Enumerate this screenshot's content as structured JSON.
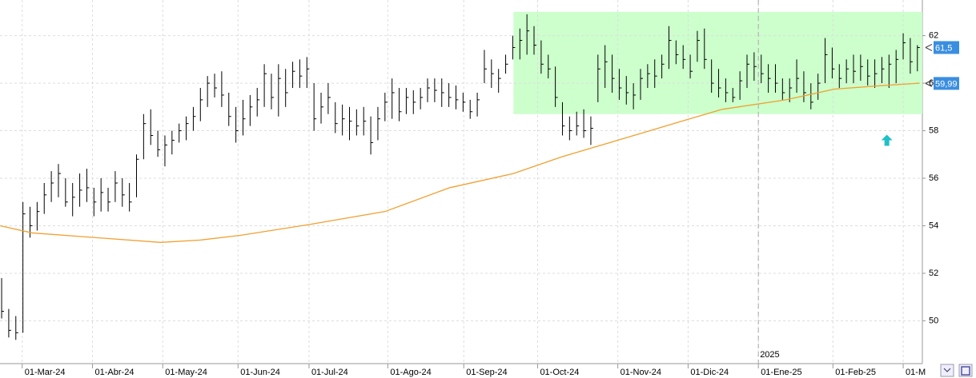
{
  "chart_data": {
    "type": "ohlc",
    "xlim": [
      -0.23,
      129.7
    ],
    "ylim": [
      48.2,
      63.5
    ],
    "yticks": [
      50,
      52,
      54,
      56,
      58,
      60,
      62
    ],
    "xticks": [
      {
        "value": 2.9,
        "label": "01-Mar-24"
      },
      {
        "value": 12.8,
        "label": "01-Abr-24"
      },
      {
        "value": 22.7,
        "label": "01-May-24"
      },
      {
        "value": 33.3,
        "label": "01-Jun-24"
      },
      {
        "value": 43.3,
        "label": "01-Jul-24"
      },
      {
        "value": 54.4,
        "label": "01-Ago-24"
      },
      {
        "value": 65.1,
        "label": "01-Sep-24"
      },
      {
        "value": 75.5,
        "label": "01-Oct-24"
      },
      {
        "value": 86.8,
        "label": "01-Nov-24"
      },
      {
        "value": 96.7,
        "label": "01-Dic-24"
      },
      {
        "value": 106.6,
        "label": "01-Ene-25"
      },
      {
        "value": 117.1,
        "label": "01-Feb-25"
      },
      {
        "value": 127.0,
        "label": "01-M"
      }
    ],
    "grid": true,
    "bar_color": "#000000",
    "high": [
      51.8,
      50.5,
      50.2,
      55.0,
      54.8,
      55.0,
      55.8,
      56.3,
      56.6,
      56.0,
      55.8,
      56.2,
      56.4,
      55.6,
      56.0,
      55.6,
      56.3,
      56.0,
      55.8,
      57.0,
      58.7,
      58.9,
      58.0,
      57.8,
      58.0,
      58.3,
      58.6,
      59.0,
      59.8,
      60.3,
      60.4,
      60.5,
      59.6,
      59.0,
      59.3,
      59.5,
      59.8,
      60.8,
      60.4,
      60.8,
      60.6,
      60.9,
      61.0,
      61.1,
      60.0,
      59.6,
      60.0,
      59.2,
      59.1,
      59.0,
      58.9,
      59.0,
      58.6,
      59.0,
      59.6,
      60.2,
      59.8,
      59.8,
      59.7,
      59.8,
      60.2,
      60.2,
      60.2,
      60.0,
      59.9,
      59.6,
      59.3,
      59.6,
      61.4,
      61.0,
      60.6,
      61.2,
      62.0,
      62.3,
      62.9,
      62.4,
      61.8,
      61.2,
      60.7,
      59.2,
      58.6,
      58.8,
      58.9,
      58.6,
      61.2,
      61.6,
      61.2,
      60.6,
      60.3,
      60.0,
      60.6,
      60.8,
      61.0,
      61.2,
      62.4,
      61.8,
      61.6,
      61.2,
      62.2,
      62.3,
      61.0,
      60.6,
      60.2,
      59.8,
      60.5,
      61.2,
      61.3,
      61.2,
      60.8,
      60.8,
      60.2,
      60.2,
      61.0,
      60.5,
      60.0,
      60.4,
      61.9,
      61.5,
      60.8,
      61.0,
      61.2,
      61.2,
      61.0,
      61.0,
      61.1,
      61.2,
      61.4,
      62.1,
      61.9,
      61.6
    ],
    "low": [
      50.1,
      49.3,
      49.2,
      49.5,
      53.5,
      53.8,
      54.5,
      55.0,
      55.2,
      54.8,
      54.4,
      54.8,
      55.0,
      54.4,
      54.6,
      54.6,
      55.0,
      54.8,
      54.6,
      55.2,
      56.8,
      57.4,
      56.9,
      56.5,
      57.0,
      57.5,
      57.6,
      58.0,
      58.4,
      59.0,
      59.4,
      59.0,
      58.2,
      57.5,
      57.8,
      58.2,
      58.6,
      59.0,
      58.9,
      58.6,
      59.0,
      59.8,
      59.8,
      59.8,
      58.0,
      58.3,
      58.7,
      57.9,
      57.8,
      57.6,
      57.8,
      57.8,
      57.0,
      57.6,
      58.4,
      58.5,
      58.4,
      58.7,
      58.7,
      58.9,
      59.2,
      59.2,
      59.0,
      59.0,
      58.9,
      58.8,
      58.5,
      58.6,
      60.0,
      59.8,
      59.6,
      60.4,
      61.0,
      61.0,
      61.2,
      61.2,
      60.4,
      60.2,
      59.0,
      57.8,
      57.6,
      57.8,
      57.7,
      57.4,
      59.2,
      59.8,
      59.6,
      59.3,
      59.1,
      58.9,
      59.3,
      59.8,
      59.8,
      60.2,
      60.6,
      60.8,
      60.6,
      60.2,
      60.9,
      60.6,
      59.6,
      59.4,
      59.2,
      59.2,
      59.3,
      59.8,
      60.1,
      60.0,
      59.6,
      59.6,
      59.3,
      59.2,
      59.6,
      59.2,
      58.9,
      59.3,
      60.0,
      60.2,
      59.8,
      60.0,
      60.0,
      60.1,
      59.9,
      59.8,
      60.0,
      59.8,
      60.0,
      61.0,
      60.4,
      60.5
    ],
    "close": [
      50.4,
      49.6,
      49.5,
      54.5,
      54.0,
      54.6,
      55.3,
      55.8,
      56.2,
      55.0,
      55.2,
      55.5,
      55.6,
      55.0,
      55.4,
      55.0,
      55.8,
      55.3,
      55.0,
      56.8,
      58.3,
      57.8,
      57.2,
      57.4,
      57.6,
      58.0,
      58.3,
      58.6,
      59.3,
      60.0,
      59.8,
      59.5,
      58.6,
      58.0,
      58.5,
      59.0,
      59.3,
      60.4,
      59.4,
      60.2,
      59.6,
      60.5,
      60.3,
      60.6,
      58.5,
      59.0,
      59.4,
      58.3,
      58.5,
      58.4,
      58.2,
      58.4,
      57.5,
      58.5,
      59.2,
      59.6,
      58.8,
      59.4,
      59.2,
      59.4,
      59.8,
      59.7,
      59.6,
      59.4,
      59.3,
      59.2,
      58.8,
      59.3,
      60.6,
      60.4,
      60.2,
      60.8,
      61.5,
      61.8,
      62.2,
      61.6,
      60.8,
      60.6,
      59.4,
      58.2,
      58.0,
      58.2,
      58.0,
      58.1,
      60.6,
      60.9,
      60.2,
      59.8,
      59.6,
      59.5,
      60.2,
      60.4,
      60.3,
      60.8,
      61.8,
      61.2,
      61.0,
      60.5,
      61.8,
      61.0,
      60.0,
      59.8,
      59.6,
      59.4,
      60.1,
      60.8,
      60.7,
      60.4,
      60.2,
      60.0,
      59.6,
      59.8,
      60.2,
      59.6,
      59.2,
      60.0,
      61.2,
      60.6,
      60.2,
      60.6,
      60.5,
      60.7,
      60.3,
      60.4,
      60.6,
      60.8,
      61.0,
      61.7,
      60.9,
      61.5
    ],
    "moving_average": {
      "color": "#f0a030",
      "x": [
        -0.2,
        4.3,
        13.3,
        22.4,
        28.0,
        33.7,
        43.3,
        54.0,
        63.1,
        72.1,
        78.9,
        83.4,
        90.2,
        96.9,
        101.5,
        110.5,
        117.3,
        124.1,
        129.3
      ],
      "values": [
        54.0,
        53.7,
        53.5,
        53.3,
        53.4,
        53.6,
        54.05,
        54.6,
        55.6,
        56.2,
        56.9,
        57.3,
        57.9,
        58.5,
        58.9,
        59.3,
        59.75,
        59.9,
        60.0
      ]
    },
    "highlight": {
      "color": "#ccffcc",
      "xlim": [
        72.1,
        129.7
      ],
      "ylim": [
        58.7,
        63.0
      ]
    },
    "year_marker": {
      "x": 106.6,
      "label": "2025"
    },
    "arrow": {
      "color": "#20c0c8",
      "x": 124.7,
      "y": 57.6
    },
    "price_labels": [
      {
        "value": 61.5,
        "label": "61,5"
      },
      {
        "value": 59.99,
        "label": "59,99"
      }
    ],
    "price_label_color": "#3a8ee0"
  }
}
